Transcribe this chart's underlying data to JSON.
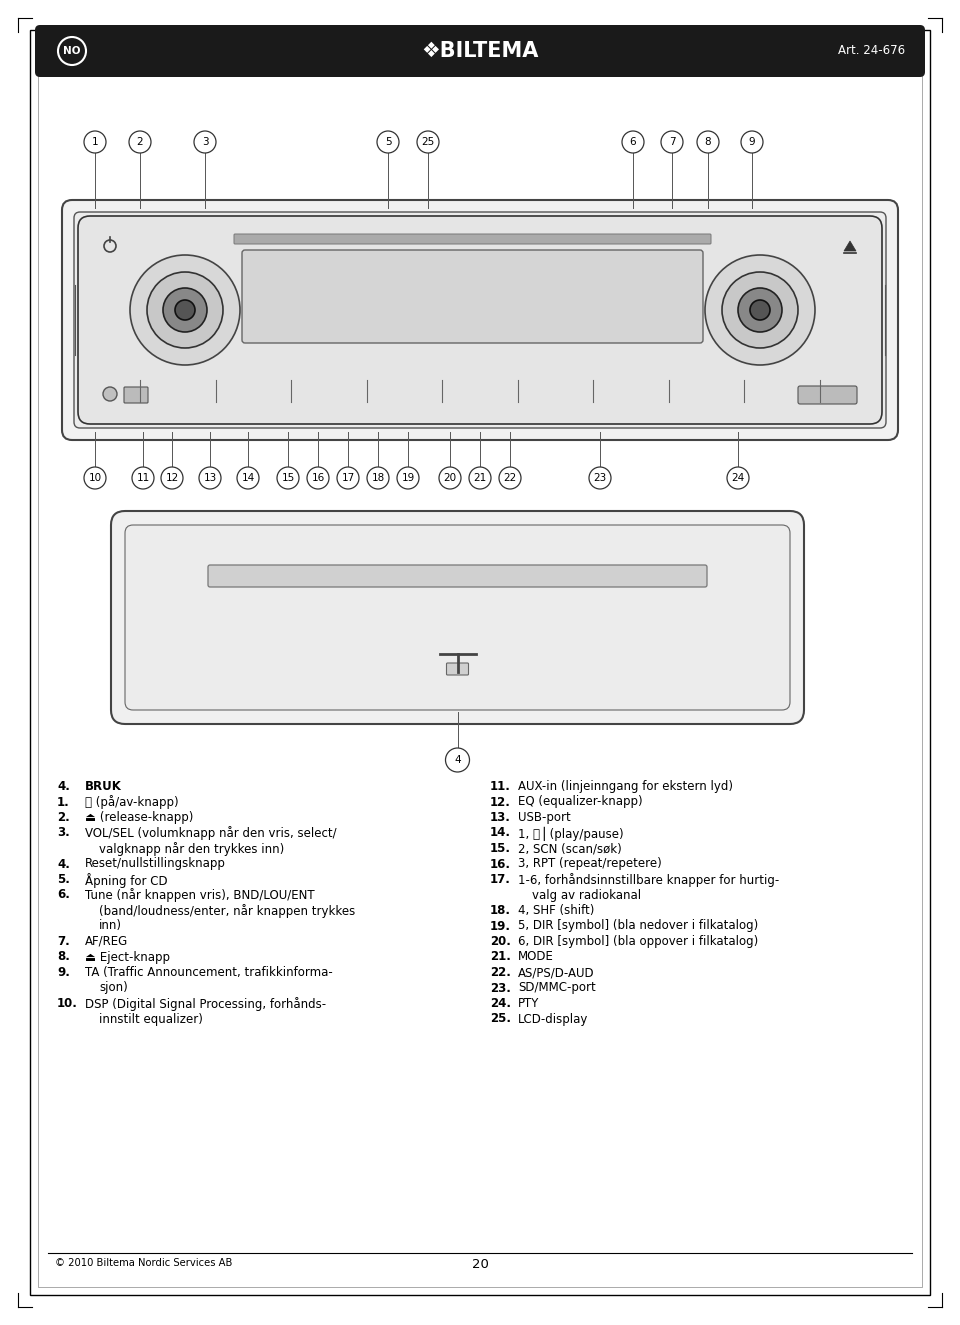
{
  "page_bg": "#ffffff",
  "header_bg": "#1a1a1a",
  "header_text": "❖BILTEMA",
  "header_left": "NO",
  "header_right": "Art. 24-676",
  "footer_text": "© 2010 Biltema Nordic Services AB",
  "footer_page": "20",
  "top_callouts": [
    [
      "1",
      95
    ],
    [
      "2",
      140
    ],
    [
      "3",
      205
    ],
    [
      "5",
      388
    ],
    [
      "25",
      428
    ],
    [
      "6",
      633
    ],
    [
      "7",
      672
    ],
    [
      "8",
      708
    ],
    [
      "9",
      752
    ]
  ],
  "bot_callouts": [
    [
      "10",
      95
    ],
    [
      "11",
      143
    ],
    [
      "12",
      172
    ],
    [
      "13",
      210
    ],
    [
      "14",
      248
    ],
    [
      "15",
      288
    ],
    [
      "16",
      318
    ],
    [
      "17",
      348
    ],
    [
      "18",
      378
    ],
    [
      "19",
      408
    ],
    [
      "20",
      450
    ],
    [
      "21",
      480
    ],
    [
      "22",
      510
    ],
    [
      "23",
      600
    ],
    [
      "24",
      738
    ]
  ],
  "left_lines": [
    {
      "num": "4.",
      "bold_num": true,
      "text": "BRUK",
      "bold_text": true,
      "indent": false
    },
    {
      "num": "1.",
      "bold_num": false,
      "text": "⏻ (på/av-knapp)",
      "bold_text": false,
      "indent": false
    },
    {
      "num": "2.",
      "bold_num": false,
      "text": "⏏ (release-knapp)",
      "bold_text": false,
      "indent": false
    },
    {
      "num": "3.",
      "bold_num": false,
      "text": "VOL/SEL (volumknapp når den vris, select/",
      "bold_text": false,
      "indent": false
    },
    {
      "num": "",
      "bold_num": false,
      "text": "valgknapp når den trykkes inn)",
      "bold_text": false,
      "indent": true
    },
    {
      "num": "4.",
      "bold_num": false,
      "text": "Reset/nullstillingsknapp",
      "bold_text": false,
      "indent": false
    },
    {
      "num": "5.",
      "bold_num": false,
      "text": "Åpning for CD",
      "bold_text": false,
      "indent": false
    },
    {
      "num": "6.",
      "bold_num": false,
      "text": "Tune (når knappen vris), BND/LOU/ENT",
      "bold_text": false,
      "indent": false
    },
    {
      "num": "",
      "bold_num": false,
      "text": "(band/loudness/enter, når knappen trykkes",
      "bold_text": false,
      "indent": true
    },
    {
      "num": "",
      "bold_num": false,
      "text": "inn)",
      "bold_text": false,
      "indent": true
    },
    {
      "num": "7.",
      "bold_num": false,
      "text": "AF/REG",
      "bold_text": false,
      "indent": false
    },
    {
      "num": "8.",
      "bold_num": false,
      "text": "⏏ Eject-knapp",
      "bold_text": false,
      "indent": false
    },
    {
      "num": "9.",
      "bold_num": false,
      "text": "TA (Traffic Announcement, trafikkinforma-",
      "bold_text": false,
      "indent": false
    },
    {
      "num": "",
      "bold_num": false,
      "text": "sjon)",
      "bold_text": false,
      "indent": true
    },
    {
      "num": "10.",
      "bold_num": false,
      "text": "DSP (Digital Signal Processing, forhånds-",
      "bold_text": false,
      "indent": false
    },
    {
      "num": "",
      "bold_num": false,
      "text": "innstilt equalizer)",
      "bold_text": false,
      "indent": true
    }
  ],
  "right_lines": [
    {
      "num": "11.",
      "text": "AUX-in (linjeinngang for ekstern lyd)",
      "indent": false
    },
    {
      "num": "12.",
      "text": "EQ (equalizer-knapp)",
      "indent": false
    },
    {
      "num": "13.",
      "text": "USB-port",
      "indent": false
    },
    {
      "num": "14.",
      "text": "1, ⏩⎥ (play/pause)",
      "indent": false
    },
    {
      "num": "15.",
      "text": "2, SCN (scan/søk)",
      "indent": false
    },
    {
      "num": "16.",
      "text": "3, RPT (repeat/repetere)",
      "indent": false
    },
    {
      "num": "17.",
      "text": "1-6, forhåndsinnstillbare knapper for hurtig-",
      "indent": false
    },
    {
      "num": "",
      "text": "valg av radiokanal",
      "indent": true
    },
    {
      "num": "18.",
      "text": "4, SHF (shift)",
      "indent": false
    },
    {
      "num": "19.",
      "text": "5, DIR [symbol] (bla nedover i filkatalog)",
      "indent": false
    },
    {
      "num": "20.",
      "text": "6, DIR [symbol] (bla oppover i filkatalog)",
      "indent": false
    },
    {
      "num": "21.",
      "text": "MODE",
      "indent": false
    },
    {
      "num": "22.",
      "text": "AS/PS/D-AUD",
      "indent": false
    },
    {
      "num": "23.",
      "text": "SD/MMC-port",
      "indent": false
    },
    {
      "num": "24.",
      "text": "PTY",
      "indent": false
    },
    {
      "num": "25.",
      "text": "LCD-display",
      "indent": false
    }
  ]
}
